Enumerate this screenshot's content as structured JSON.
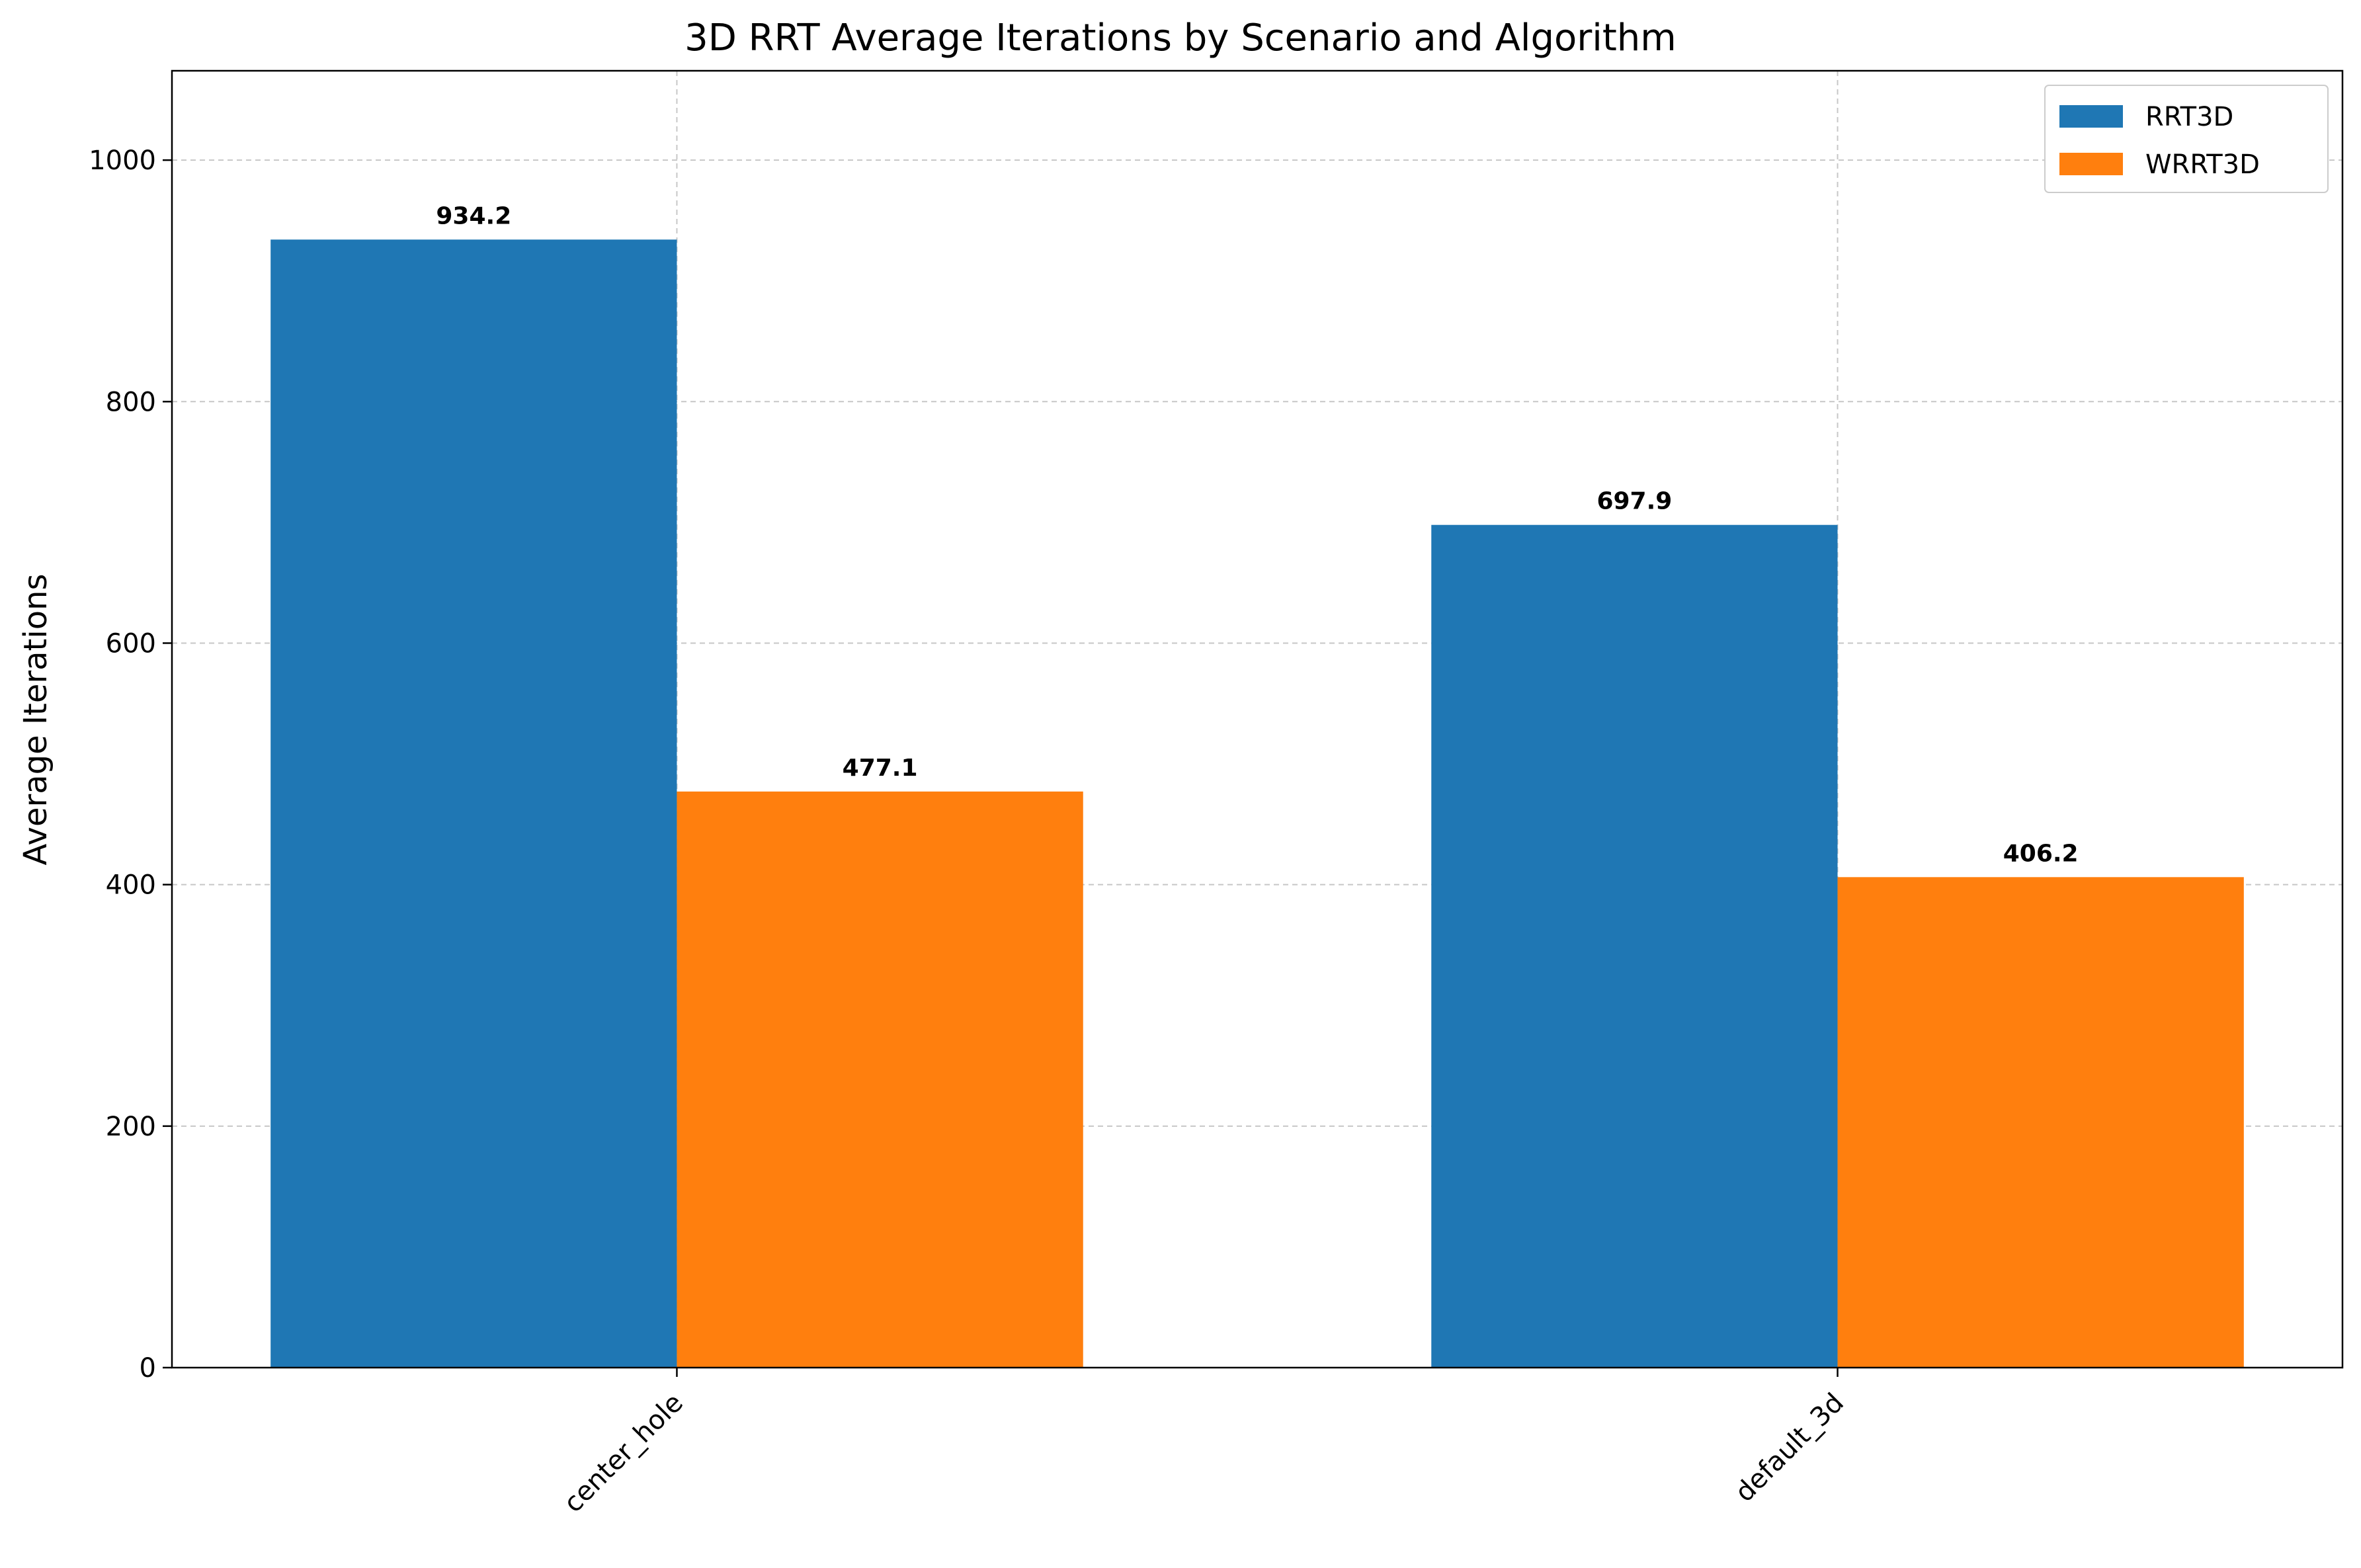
{
  "chart_data": {
    "type": "bar",
    "title": "3D RRT Average Iterations by Scenario and Algorithm",
    "xlabel": "",
    "ylabel": "Average Iterations",
    "categories": [
      "center_hole",
      "default_3d"
    ],
    "series": [
      {
        "name": "RRT3D",
        "color": "#1f77b4",
        "values": [
          934.2,
          697.9
        ]
      },
      {
        "name": "WRRT3D",
        "color": "#ff7f0e",
        "values": [
          477.1,
          406.2
        ]
      }
    ],
    "ylim": [
      0,
      1074
    ],
    "yticks": [
      0,
      200,
      400,
      600,
      800,
      1000
    ],
    "grid": true,
    "legend_position": "top-right",
    "x_tick_rotation": 45
  }
}
